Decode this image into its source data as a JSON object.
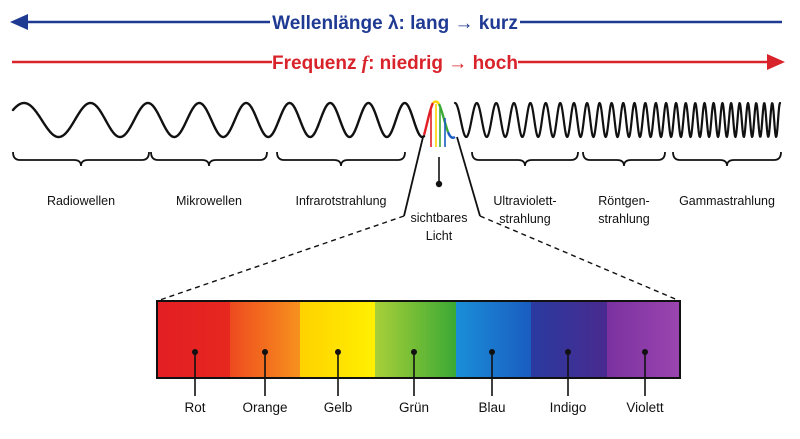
{
  "wavelength_heading": "Wellenlänge λ: lang → kurz",
  "frequency_heading_prefix": "Frequenz ",
  "frequency_symbol": "f",
  "frequency_heading_suffix": ": niedrig → hoch",
  "regions": {
    "radio": "Radiowellen",
    "microwave": "Mikrowellen",
    "infrared": "Infrarotstrahlung",
    "visible_1": "sichtbares",
    "visible_2": "Licht",
    "uv_1": "Ultraviolett-",
    "uv_2": "strahlung",
    "xray_1": "Röntgen-",
    "xray_2": "strahlung",
    "gamma": "Gammastrahlung"
  },
  "spectrum": [
    {
      "label": "Rot",
      "color": "#e31e24"
    },
    {
      "label": "Orange",
      "color": "#f47b20"
    },
    {
      "label": "Gelb",
      "color": "#ffe500"
    },
    {
      "label": "Grün",
      "color": "#5cb531"
    },
    {
      "label": "Blau",
      "color": "#1478d4"
    },
    {
      "label": "Indigo",
      "color": "#2e2e9a"
    },
    {
      "label": "Violett",
      "color": "#8e3aa7"
    }
  ],
  "colors": {
    "wavelength_arrow": "#1f3a93",
    "frequency_arrow": "#d9232a",
    "wave": "#111111"
  }
}
